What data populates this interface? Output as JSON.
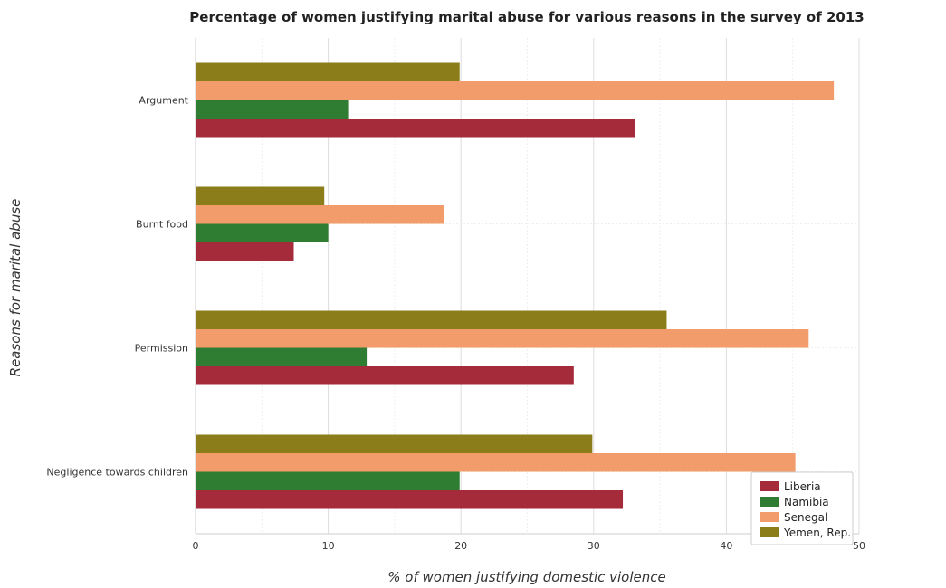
{
  "chart_data": {
    "type": "bar",
    "orientation": "horizontal",
    "title": "Percentage of women justifying marital abuse for various reasons in the survey of 2013",
    "xlabel": "% of women justifying domestic violence",
    "ylabel": "Reasons for marital abuse",
    "categories": [
      "Argument",
      "Burnt food",
      "Permission",
      "Negligence towards children"
    ],
    "xlim": [
      0,
      50
    ],
    "xticks": [
      0,
      10,
      20,
      30,
      40,
      50
    ],
    "grid": true,
    "legend_position": "bottom-right",
    "series": [
      {
        "name": "Liberia",
        "color": "#a52a3a",
        "values": [
          33.1,
          7.4,
          28.5,
          32.2
        ]
      },
      {
        "name": "Namibia",
        "color": "#2e7d32",
        "values": [
          11.5,
          10.0,
          12.9,
          19.9
        ]
      },
      {
        "name": "Senegal",
        "color": "#f39c6b",
        "values": [
          48.1,
          18.7,
          46.2,
          45.2
        ]
      },
      {
        "name": "Yemen, Rep.",
        "color": "#8b7d1a",
        "values": [
          19.9,
          9.7,
          35.5,
          29.9
        ]
      }
    ]
  }
}
